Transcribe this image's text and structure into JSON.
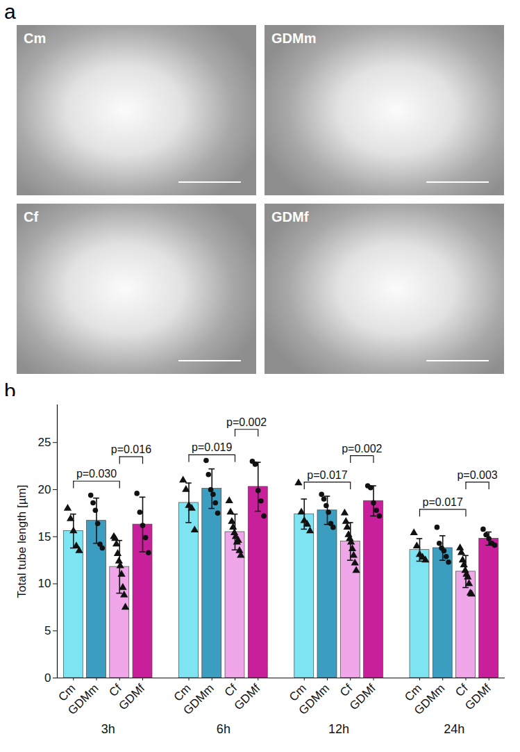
{
  "image_panel": {
    "letter": "a",
    "images": [
      "Cm",
      "GDMm",
      "Cf",
      "GDMf"
    ]
  },
  "chart_data": {
    "type": "bar",
    "letter": "b",
    "ylabel": "Total tube length [µm]",
    "categories": [
      "3h",
      "6h",
      "12h",
      "24h"
    ],
    "ylim": [
      0,
      29
    ],
    "yticks": [
      0,
      5,
      10,
      15,
      20,
      25
    ],
    "grid": false,
    "series": [
      {
        "name": "Cm",
        "color": "#7ee4f2",
        "marker": "triangle",
        "values": [
          15.6,
          18.6,
          17.4,
          13.6
        ],
        "errors": [
          1.8,
          2.1,
          1.6,
          1.2
        ],
        "points": [
          [
            18.0,
            16.9,
            15.6,
            14.0,
            13.5
          ],
          [
            21.0,
            20.0,
            18.3,
            18.0,
            15.7
          ],
          [
            20.7,
            17.6,
            16.7,
            16.3,
            15.6
          ],
          [
            15.4,
            14.0,
            13.1,
            12.8,
            12.5
          ]
        ]
      },
      {
        "name": "GDMm",
        "color": "#3b9dbf",
        "marker": "circle",
        "values": [
          16.7,
          20.1,
          17.8,
          13.8
        ],
        "errors": [
          2.4,
          2.1,
          1.5,
          1.3
        ],
        "points": [
          [
            19.4,
            18.6,
            17.8,
            16.4,
            14.2,
            13.8
          ],
          [
            23.1,
            21.6,
            20.0,
            19.5,
            18.6,
            17.5
          ],
          [
            19.5,
            19.0,
            18.3,
            17.6,
            16.4,
            16.0
          ],
          [
            16.0,
            14.3,
            13.8,
            13.5,
            12.9,
            12.3
          ]
        ]
      },
      {
        "name": "Cf",
        "color": "#efa7ea",
        "marker": "triangle",
        "values": [
          11.8,
          15.5,
          14.5,
          11.3
        ],
        "errors": [
          2.8,
          1.9,
          2.0,
          1.7
        ],
        "points": [
          [
            15.0,
            14.8,
            14.2,
            13.2,
            12.4,
            11.9,
            11.0,
            9.6,
            8.8,
            7.5
          ],
          [
            18.8,
            17.6,
            16.6,
            16.0,
            15.4,
            15.0,
            14.4,
            14.6,
            13.5,
            13.0
          ],
          [
            17.5,
            16.6,
            16.0,
            15.2,
            14.8,
            14.4,
            13.7,
            13.0,
            12.2,
            11.4
          ],
          [
            13.8,
            13.3,
            12.5,
            12.0,
            11.4,
            11.0,
            10.7,
            10.0,
            9.0,
            8.9
          ]
        ]
      },
      {
        "name": "GDMf",
        "color": "#c8209a",
        "marker": "circle",
        "values": [
          16.3,
          20.3,
          18.8,
          14.8
        ],
        "errors": [
          2.9,
          2.6,
          1.6,
          0.7
        ],
        "points": [
          [
            19.6,
            17.6,
            16.2,
            14.9,
            13.3
          ],
          [
            23.0,
            22.7,
            19.9,
            18.8,
            17.2
          ],
          [
            20.4,
            20.2,
            18.6,
            17.8,
            17.2
          ],
          [
            15.8,
            15.2,
            14.8,
            14.3,
            14.1
          ]
        ]
      }
    ],
    "brackets": [
      {
        "category": "3h",
        "from": "Cm",
        "to": "Cf",
        "y": 20.9,
        "label": "p=0.030"
      },
      {
        "category": "3h",
        "from": "Cf",
        "to": "GDMf",
        "y": 23.5,
        "label": "p=0.016"
      },
      {
        "category": "6h",
        "from": "Cm",
        "to": "Cf",
        "y": 23.7,
        "label": "p=0.019"
      },
      {
        "category": "6h",
        "from": "Cf",
        "to": "GDMf",
        "y": 26.4,
        "label": "p=0.002"
      },
      {
        "category": "12h",
        "from": "Cm",
        "to": "Cf",
        "y": 20.8,
        "label": "p=0.017"
      },
      {
        "category": "12h",
        "from": "Cf",
        "to": "GDMf",
        "y": 23.6,
        "label": "p=0.002"
      },
      {
        "category": "24h",
        "from": "Cm",
        "to": "Cf",
        "y": 17.9,
        "label": "p=0.017"
      },
      {
        "category": "24h",
        "from": "Cf",
        "to": "GDMf",
        "y": 20.8,
        "label": "p=0.003"
      }
    ]
  }
}
